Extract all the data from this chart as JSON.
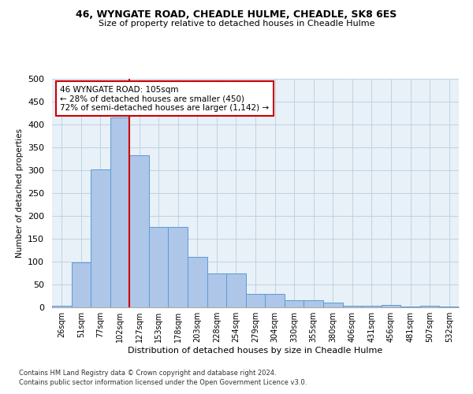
{
  "title": "46, WYNGATE ROAD, CHEADLE HULME, CHEADLE, SK8 6ES",
  "subtitle": "Size of property relative to detached houses in Cheadle Hulme",
  "xlabel": "Distribution of detached houses by size in Cheadle Hulme",
  "ylabel": "Number of detached properties",
  "bar_labels": [
    "26sqm",
    "51sqm",
    "77sqm",
    "102sqm",
    "127sqm",
    "153sqm",
    "178sqm",
    "203sqm",
    "228sqm",
    "254sqm",
    "279sqm",
    "304sqm",
    "330sqm",
    "355sqm",
    "380sqm",
    "406sqm",
    "431sqm",
    "456sqm",
    "481sqm",
    "507sqm",
    "532sqm"
  ],
  "bar_values": [
    4,
    99,
    302,
    415,
    332,
    176,
    176,
    111,
    75,
    75,
    30,
    30,
    16,
    16,
    10,
    4,
    4,
    6,
    1,
    4,
    1
  ],
  "bar_color": "#aec6e8",
  "bar_edge_color": "#5b9bd5",
  "vline_x": 3.5,
  "vline_color": "#cc0000",
  "annotation_text": "46 WYNGATE ROAD: 105sqm\n← 28% of detached houses are smaller (450)\n72% of semi-detached houses are larger (1,142) →",
  "annotation_box_color": "#ffffff",
  "annotation_box_edge": "#cc0000",
  "footer1": "Contains HM Land Registry data © Crown copyright and database right 2024.",
  "footer2": "Contains public sector information licensed under the Open Government Licence v3.0.",
  "ylim": [
    0,
    500
  ],
  "yticks": [
    0,
    50,
    100,
    150,
    200,
    250,
    300,
    350,
    400,
    450,
    500
  ],
  "grid_color": "#b8cfe0",
  "bg_color": "#e8f0f8",
  "plot_bg": "#ffffff"
}
